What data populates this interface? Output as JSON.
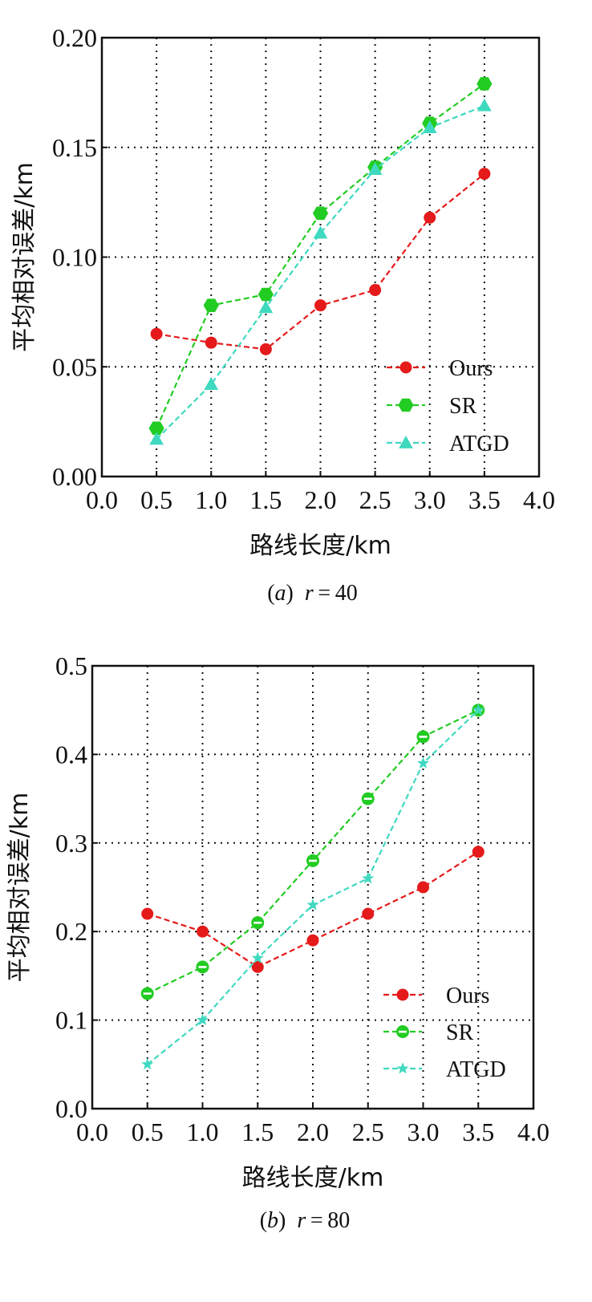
{
  "chart_data": [
    {
      "type": "line",
      "caption": {
        "letter": "a",
        "variable": "r",
        "value": "40"
      },
      "xlabel": "路线长度/km",
      "ylabel": "平均相对误差/km",
      "xlim": [
        0.0,
        4.0
      ],
      "ylim": [
        0.0,
        0.2
      ],
      "xticks": [
        "0.0",
        "0.5",
        "1.0",
        "1.5",
        "2.0",
        "2.5",
        "3.0",
        "3.5",
        "4.0"
      ],
      "yticks": [
        "0.00",
        "0.05",
        "0.10",
        "0.15",
        "0.20"
      ],
      "grid": true,
      "legend_position": "bottom-right",
      "x": [
        0.5,
        1.0,
        1.5,
        2.0,
        2.5,
        3.0,
        3.5
      ],
      "series": [
        {
          "name": "Ours",
          "color": "#e51a1a",
          "marker": "circle",
          "values": [
            0.065,
            0.061,
            0.058,
            0.078,
            0.085,
            0.118,
            0.138
          ]
        },
        {
          "name": "SR",
          "color": "#22cc22",
          "marker": "hexagon",
          "values": [
            0.022,
            0.078,
            0.083,
            0.12,
            0.141,
            0.161,
            0.179
          ]
        },
        {
          "name": "ATGD",
          "color": "#3fd9c0",
          "marker": "triangle",
          "values": [
            0.017,
            0.042,
            0.077,
            0.111,
            0.14,
            0.159,
            0.169
          ]
        }
      ]
    },
    {
      "type": "line",
      "caption": {
        "letter": "b",
        "variable": "r",
        "value": "80"
      },
      "xlabel": "路线长度/km",
      "ylabel": "平均相对误差/km",
      "xlim": [
        0.0,
        4.0
      ],
      "ylim": [
        0.0,
        0.5
      ],
      "xticks": [
        "0.0",
        "0.5",
        "1.0",
        "1.5",
        "2.0",
        "2.5",
        "3.0",
        "3.5",
        "4.0"
      ],
      "yticks": [
        "0.0",
        "0.1",
        "0.2",
        "0.3",
        "0.4",
        "0.5"
      ],
      "grid": true,
      "legend_position": "bottom-right",
      "x": [
        0.5,
        1.0,
        1.5,
        2.0,
        2.5,
        3.0,
        3.5
      ],
      "series": [
        {
          "name": "Ours",
          "color": "#e51a1a",
          "marker": "circle",
          "values": [
            0.22,
            0.2,
            0.16,
            0.19,
            0.22,
            0.25,
            0.29
          ]
        },
        {
          "name": "SR",
          "color": "#22cc22",
          "marker": "ring",
          "values": [
            0.13,
            0.16,
            0.21,
            0.28,
            0.35,
            0.42,
            0.45
          ]
        },
        {
          "name": "ATGD",
          "color": "#3fd9c0",
          "marker": "star",
          "values": [
            0.05,
            0.1,
            0.17,
            0.23,
            0.26,
            0.39,
            0.45
          ]
        }
      ]
    }
  ]
}
